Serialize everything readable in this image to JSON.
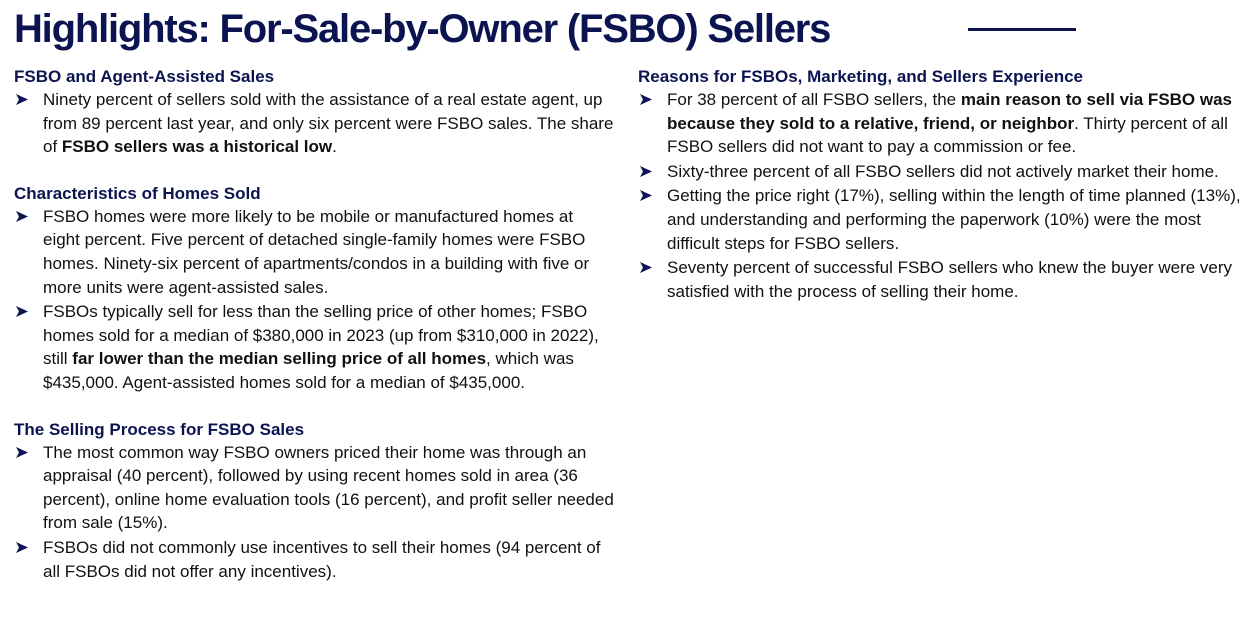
{
  "title": "Highlights: For-Sale-by-Owner (FSBO) Sellers",
  "bullet_icon": "arrow-bullet-icon",
  "colors": {
    "brand_navy": "#0b1450",
    "text": "#111111"
  },
  "left_column": [
    {
      "heading": "FSBO and Agent-Assisted Sales",
      "bullets": [
        [
          {
            "t": "Ninety percent of sellers sold with the assistance of a real estate agent, up from 89 percent last year, and only six percent were FSBO sales. The share of "
          },
          {
            "t": "FSBO sellers was a historical low",
            "b": true
          },
          {
            "t": "."
          }
        ]
      ]
    },
    {
      "heading": "Characteristics of Homes Sold",
      "bullets": [
        [
          {
            "t": "FSBO homes were more likely to be mobile or manufactured homes at eight percent. Five percent of detached single-family homes were FSBO homes. Ninety-six percent of apartments/condos in a building with five or more units were agent-assisted sales."
          }
        ],
        [
          {
            "t": "FSBOs typically sell for less than the selling price of other homes; FSBO homes sold for a median of $380,000 in 2023 (up from $310,000 in 2022), still "
          },
          {
            "t": "far lower than the median selling price of all homes",
            "b": true
          },
          {
            "t": ", which was $435,000. Agent-assisted homes sold for a median of $435,000."
          }
        ]
      ]
    },
    {
      "heading": "The Selling Process for FSBO Sales",
      "bullets": [
        [
          {
            "t": "The most common way FSBO owners priced their home was through an appraisal (40 percent), followed by using recent homes sold in area (36 percent), online home evaluation tools (16 percent), and profit seller needed from sale (15%)."
          }
        ],
        [
          {
            "t": "FSBOs did not commonly use incentives to sell their homes (94 percent of all FSBOs did not offer any incentives)."
          }
        ]
      ]
    }
  ],
  "right_column": [
    {
      "heading": "Reasons for FSBOs, Marketing, and Sellers Experience",
      "bullets": [
        [
          {
            "t": "For 38 percent of all FSBO sellers, the "
          },
          {
            "t": "main reason to sell via FSBO was because they sold to a relative, friend, or neighbor",
            "b": true
          },
          {
            "t": ". Thirty percent of all FSBO sellers did not want to pay a commission or fee."
          }
        ],
        [
          {
            "t": "Sixty-three percent of all FSBO sellers did not actively market their home."
          }
        ],
        [
          {
            "t": "Getting the price right (17%), selling within the length of time planned (13%), and understanding and performing the paperwork (10%) were the most difficult steps for FSBO sellers."
          }
        ],
        [
          {
            "t": "Seventy percent of successful FSBO sellers who knew the buyer were very satisfied with the process of selling their home."
          }
        ]
      ]
    }
  ]
}
